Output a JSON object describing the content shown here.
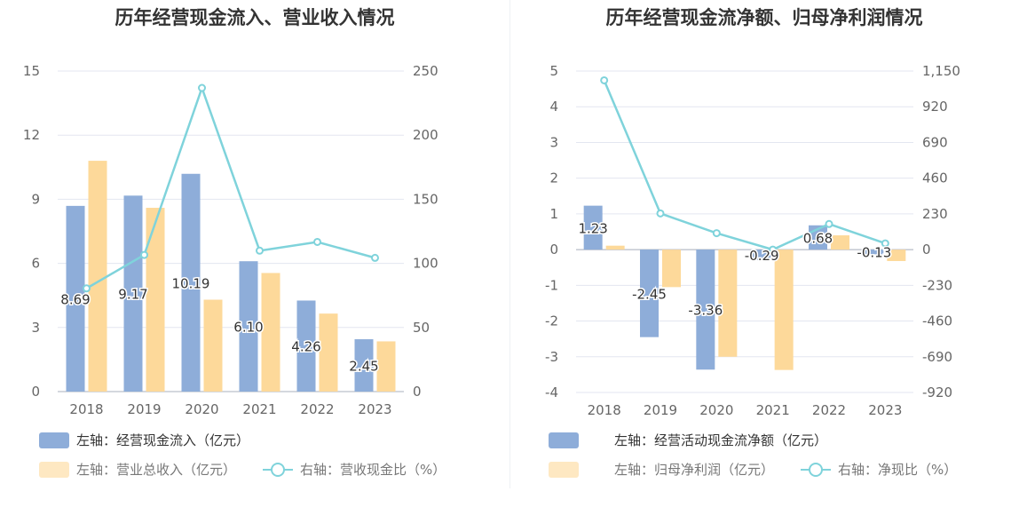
{
  "chart_data": [
    {
      "type": "bar",
      "title": "历年经营现金流入、营业收入情况",
      "categories": [
        "2018",
        "2019",
        "2020",
        "2021",
        "2022",
        "2023"
      ],
      "left_axis": {
        "min": 0,
        "max": 15,
        "ticks": [
          "0",
          "3",
          "6",
          "9",
          "12",
          "15"
        ]
      },
      "right_axis": {
        "min": 0,
        "max": 250,
        "ticks": [
          "0",
          "50",
          "100",
          "150",
          "200",
          "250"
        ]
      },
      "series": [
        {
          "name": "左轴：经营现金流入（亿元）",
          "kind": "bar",
          "axis": "left",
          "color": "#8eadd9",
          "values": [
            8.69,
            9.17,
            10.19,
            6.1,
            4.26,
            2.45
          ],
          "labels": [
            "8.69",
            "9.17",
            "10.19",
            "6.10",
            "4.26",
            "2.45"
          ]
        },
        {
          "name": "左轴：营业总收入（亿元）",
          "kind": "bar",
          "axis": "left",
          "color": "#fdd99a",
          "values": [
            10.8,
            8.6,
            4.3,
            5.55,
            3.65,
            2.35
          ]
        },
        {
          "name": "右轴：营收现金比（%）",
          "kind": "line",
          "axis": "right",
          "color": "#7fd3db",
          "values": [
            80.5,
            106.6,
            236.8,
            109.9,
            116.7,
            104.3
          ]
        }
      ],
      "grid": true
    },
    {
      "type": "bar",
      "title": "历年经营现金流净额、归母净利润情况",
      "categories": [
        "2018",
        "2019",
        "2020",
        "2021",
        "2022",
        "2023"
      ],
      "left_axis": {
        "min": -4,
        "max": 5,
        "ticks": [
          "-4",
          "-3",
          "-2",
          "-1",
          "0",
          "1",
          "2",
          "3",
          "4",
          "5"
        ]
      },
      "right_axis": {
        "min": -920,
        "max": 1150,
        "ticks": [
          "-920",
          "-690",
          "-460",
          "-230",
          "0",
          "230",
          "460",
          "690",
          "920",
          "1,150"
        ]
      },
      "series": [
        {
          "name": "左轴：经营活动现金流净额（亿元）",
          "kind": "bar",
          "axis": "left",
          "color": "#8eadd9",
          "values": [
            1.23,
            -2.45,
            -3.36,
            -0.29,
            0.68,
            -0.13
          ],
          "labels": [
            "1.23",
            "-2.45",
            "-3.36",
            "-0.29",
            "0.68",
            "-0.13"
          ]
        },
        {
          "name": "左轴：归母净利润（亿元）",
          "kind": "bar",
          "axis": "left",
          "color": "#fdd99a",
          "values": [
            0.11,
            -1.05,
            -3.0,
            -3.37,
            0.4,
            -0.32
          ]
        },
        {
          "name": "右轴：净现比（%）",
          "kind": "line",
          "axis": "right",
          "color": "#7fd3db",
          "values": [
            1090,
            233,
            106,
            0,
            165,
            40
          ]
        }
      ],
      "grid": true
    }
  ]
}
